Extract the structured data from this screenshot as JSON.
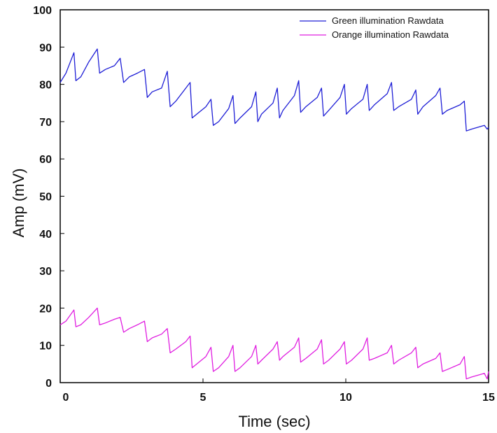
{
  "chart_data": {
    "type": "line",
    "xlabel": "Time (sec)",
    "ylabel": "Amp (mV)",
    "xlim": [
      0,
      15
    ],
    "ylim": [
      0,
      100
    ],
    "xticks": [
      0,
      5,
      10,
      15
    ],
    "yticks": [
      0,
      10,
      20,
      30,
      40,
      50,
      60,
      70,
      80,
      90,
      100
    ],
    "grid": false,
    "legend_position": "top-right",
    "series": [
      {
        "name": "Green illumination Rawdata",
        "color": "#1f1fd6",
        "x": [
          0,
          0.2,
          0.48,
          0.55,
          0.72,
          1.0,
          1.3,
          1.38,
          1.58,
          1.9,
          2.1,
          2.22,
          2.42,
          2.7,
          2.95,
          3.05,
          3.22,
          3.55,
          3.75,
          3.85,
          4.05,
          4.4,
          4.55,
          4.62,
          4.78,
          5.1,
          5.28,
          5.36,
          5.55,
          5.9,
          6.05,
          6.12,
          6.3,
          6.7,
          6.85,
          6.92,
          7.05,
          7.45,
          7.6,
          7.68,
          7.8,
          8.2,
          8.35,
          8.42,
          8.6,
          9.0,
          9.15,
          9.22,
          9.4,
          9.8,
          9.95,
          10.02,
          10.2,
          10.6,
          10.75,
          10.82,
          11.0,
          11.45,
          11.6,
          11.68,
          11.85,
          12.3,
          12.45,
          12.52,
          12.7,
          13.15,
          13.3,
          13.38,
          13.55,
          14.0,
          14.15,
          14.22,
          14.4,
          14.85,
          14.95,
          15.0
        ],
        "y": [
          80.5,
          83,
          88.5,
          81,
          82,
          86,
          89.5,
          83,
          84,
          85,
          87,
          80.5,
          82,
          83,
          84,
          76.5,
          78,
          79,
          83.5,
          74,
          75.5,
          79,
          80.5,
          71,
          72,
          74,
          76,
          69,
          70,
          73.5,
          77,
          69.5,
          71,
          74,
          78,
          70,
          72,
          75,
          79,
          71,
          73,
          77,
          81,
          72.5,
          74,
          76.5,
          79,
          71.5,
          73,
          76.5,
          80,
          72,
          73.5,
          76,
          80,
          73,
          74.5,
          77.5,
          80.5,
          73,
          74,
          76,
          78.5,
          72,
          74,
          77,
          79,
          72,
          73,
          74.5,
          75.5,
          67.5,
          68,
          69,
          68,
          68.5
        ]
      },
      {
        "name": "Orange illumination Rawdata",
        "color": "#e01ee0",
        "x": [
          0,
          0.2,
          0.48,
          0.55,
          0.72,
          1.0,
          1.3,
          1.38,
          1.58,
          1.9,
          2.1,
          2.22,
          2.42,
          2.7,
          2.95,
          3.05,
          3.22,
          3.55,
          3.75,
          3.85,
          4.05,
          4.4,
          4.55,
          4.62,
          4.78,
          5.1,
          5.28,
          5.36,
          5.55,
          5.9,
          6.05,
          6.12,
          6.3,
          6.7,
          6.85,
          6.92,
          7.05,
          7.45,
          7.6,
          7.68,
          7.8,
          8.2,
          8.35,
          8.42,
          8.6,
          9.0,
          9.15,
          9.22,
          9.4,
          9.8,
          9.95,
          10.02,
          10.2,
          10.6,
          10.75,
          10.82,
          11.0,
          11.45,
          11.6,
          11.68,
          11.85,
          12.3,
          12.45,
          12.52,
          12.7,
          13.15,
          13.3,
          13.38,
          13.55,
          14.0,
          14.15,
          14.22,
          14.4,
          14.85,
          14.95,
          15.0
        ],
        "y": [
          15.5,
          16.5,
          19.5,
          15,
          15.5,
          17.5,
          20,
          15.5,
          16,
          17,
          17.5,
          13.5,
          14.5,
          15.5,
          16.5,
          11,
          12,
          13,
          14.5,
          8,
          9,
          11,
          12.5,
          4,
          5,
          7,
          9.5,
          3,
          4,
          7,
          10,
          3,
          4,
          7,
          10,
          5,
          6,
          9,
          11,
          6,
          7,
          9.5,
          12,
          5.5,
          6.5,
          9,
          11.5,
          5,
          6,
          9,
          11,
          5,
          6,
          9,
          12,
          6,
          6.5,
          8,
          10,
          5,
          6,
          8,
          9.5,
          4,
          5,
          6.5,
          8,
          3,
          3.5,
          5,
          7,
          1,
          1.5,
          2.5,
          1,
          3
        ]
      }
    ]
  }
}
